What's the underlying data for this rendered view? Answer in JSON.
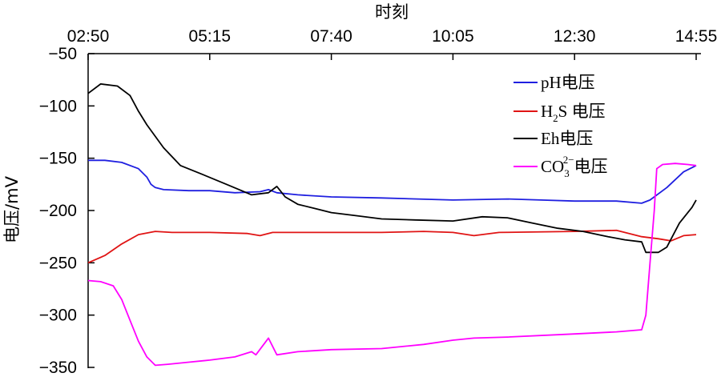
{
  "chart_data": {
    "type": "line",
    "xlabel": "时刻",
    "ylabel": "电压/mV",
    "x_axis_position": "top",
    "x_range": [
      "02:50",
      "14:55"
    ],
    "x_ticks": [
      "02:50",
      "05:15",
      "07:40",
      "10:05",
      "12:30",
      "14:55"
    ],
    "ylim": [
      -350,
      -50
    ],
    "y_ticks": [
      "−50",
      "−100",
      "−150",
      "−200",
      "−250",
      "−300",
      "−350"
    ],
    "grid": false,
    "legend_position": "top-right",
    "series": [
      {
        "name": "pH电压",
        "color": "#1f1fe0",
        "points": [
          [
            "02:50",
            -152
          ],
          [
            "03:10",
            -152
          ],
          [
            "03:30",
            -154
          ],
          [
            "03:50",
            -160
          ],
          [
            "04:00",
            -168
          ],
          [
            "04:05",
            -175
          ],
          [
            "04:10",
            -178
          ],
          [
            "04:20",
            -180
          ],
          [
            "04:50",
            -181
          ],
          [
            "05:15",
            -181
          ],
          [
            "05:45",
            -183
          ],
          [
            "06:15",
            -182
          ],
          [
            "06:25",
            -180
          ],
          [
            "06:35",
            -183
          ],
          [
            "07:00",
            -185
          ],
          [
            "07:40",
            -187
          ],
          [
            "08:40",
            -188
          ],
          [
            "10:05",
            -190
          ],
          [
            "11:10",
            -189
          ],
          [
            "11:50",
            -190
          ],
          [
            "12:30",
            -191
          ],
          [
            "13:00",
            -191
          ],
          [
            "13:20",
            -191
          ],
          [
            "13:50",
            -193
          ],
          [
            "14:00",
            -190
          ],
          [
            "14:20",
            -178
          ],
          [
            "14:40",
            -163
          ],
          [
            "14:55",
            -157
          ]
        ]
      },
      {
        "name": "H₂S 电压",
        "name_text": "H",
        "name_sub": "2",
        "name_rest": "S 电压",
        "color": "#e01414",
        "points": [
          [
            "02:50",
            -250
          ],
          [
            "03:10",
            -243
          ],
          [
            "03:30",
            -232
          ],
          [
            "03:50",
            -223
          ],
          [
            "04:10",
            -220
          ],
          [
            "04:30",
            -221
          ],
          [
            "05:15",
            -221
          ],
          [
            "06:00",
            -222
          ],
          [
            "06:15",
            -224
          ],
          [
            "06:30",
            -221
          ],
          [
            "07:40",
            -221
          ],
          [
            "08:40",
            -221
          ],
          [
            "09:30",
            -220
          ],
          [
            "10:05",
            -221
          ],
          [
            "10:30",
            -224
          ],
          [
            "11:00",
            -221
          ],
          [
            "12:30",
            -220
          ],
          [
            "13:20",
            -219
          ],
          [
            "13:50",
            -225
          ],
          [
            "14:10",
            -227
          ],
          [
            "14:25",
            -229
          ],
          [
            "14:40",
            -224
          ],
          [
            "14:55",
            -223
          ]
        ]
      },
      {
        "name": "Eh电压",
        "color": "#000000",
        "points": [
          [
            "02:50",
            -88
          ],
          [
            "03:05",
            -79
          ],
          [
            "03:25",
            -81
          ],
          [
            "03:40",
            -90
          ],
          [
            "03:50",
            -105
          ],
          [
            "04:00",
            -118
          ],
          [
            "04:20",
            -140
          ],
          [
            "04:40",
            -157
          ],
          [
            "05:05",
            -165
          ],
          [
            "05:35",
            -175
          ],
          [
            "06:05",
            -185
          ],
          [
            "06:25",
            -183
          ],
          [
            "06:35",
            -177
          ],
          [
            "06:45",
            -187
          ],
          [
            "07:00",
            -194
          ],
          [
            "07:20",
            -198
          ],
          [
            "07:40",
            -202
          ],
          [
            "08:10",
            -205
          ],
          [
            "08:40",
            -208
          ],
          [
            "09:20",
            -209
          ],
          [
            "10:05",
            -210
          ],
          [
            "10:40",
            -206
          ],
          [
            "11:10",
            -207
          ],
          [
            "11:40",
            -212
          ],
          [
            "12:10",
            -217
          ],
          [
            "12:40",
            -220
          ],
          [
            "13:10",
            -225
          ],
          [
            "13:30",
            -228
          ],
          [
            "13:50",
            -230
          ],
          [
            "13:55",
            -240
          ],
          [
            "14:10",
            -240
          ],
          [
            "14:20",
            -235
          ],
          [
            "14:35",
            -212
          ],
          [
            "14:50",
            -197
          ],
          [
            "14:55",
            -190
          ]
        ]
      },
      {
        "name": "CO₃²⁻电压",
        "name_text": "CO",
        "name_sub": "3",
        "name_sup": "2−",
        "name_rest": "电压",
        "color": "#ff00ff",
        "points": [
          [
            "02:50",
            -267
          ],
          [
            "03:05",
            -268
          ],
          [
            "03:20",
            -272
          ],
          [
            "03:30",
            -285
          ],
          [
            "03:40",
            -305
          ],
          [
            "03:50",
            -325
          ],
          [
            "04:00",
            -340
          ],
          [
            "04:10",
            -348
          ],
          [
            "04:25",
            -347
          ],
          [
            "04:50",
            -345
          ],
          [
            "05:15",
            -343
          ],
          [
            "05:45",
            -340
          ],
          [
            "06:05",
            -335
          ],
          [
            "06:10",
            -338
          ],
          [
            "06:25",
            -322
          ],
          [
            "06:35",
            -338
          ],
          [
            "07:00",
            -335
          ],
          [
            "07:40",
            -333
          ],
          [
            "08:40",
            -332
          ],
          [
            "09:30",
            -328
          ],
          [
            "10:05",
            -324
          ],
          [
            "10:30",
            -322
          ],
          [
            "11:10",
            -321
          ],
          [
            "12:30",
            -318
          ],
          [
            "13:20",
            -316
          ],
          [
            "13:50",
            -314
          ],
          [
            "13:55",
            -300
          ],
          [
            "14:00",
            -250
          ],
          [
            "14:05",
            -200
          ],
          [
            "14:08",
            -160
          ],
          [
            "14:15",
            -156
          ],
          [
            "14:30",
            -155
          ],
          [
            "14:45",
            -156
          ],
          [
            "14:55",
            -157
          ]
        ]
      }
    ]
  }
}
